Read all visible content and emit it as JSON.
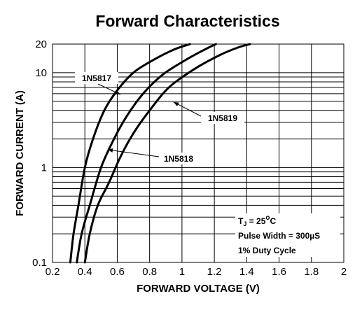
{
  "chart_data": {
    "type": "line",
    "title": "Forward Characteristics",
    "xlabel": "FORWARD VOLTAGE (V)",
    "ylabel": "FORWARD CURRENT (A)",
    "xlim": [
      0.2,
      2.0
    ],
    "ylim": [
      0.1,
      20
    ],
    "yscale": "log",
    "grid": true,
    "x_ticks": [
      0.2,
      0.4,
      0.6,
      0.8,
      1.0,
      1.2,
      1.4,
      1.6,
      1.8,
      2.0
    ],
    "x_tick_labels": [
      "0.2",
      "0.4",
      "0.6",
      "0.8",
      "1",
      "1.2",
      "1.4",
      "1.6",
      "1.8",
      "2"
    ],
    "y_ticks": [
      0.1,
      1,
      10,
      20
    ],
    "y_tick_labels": [
      "0.1",
      "1",
      "10",
      "20"
    ],
    "series": [
      {
        "name": "1N5817",
        "x": [
          0.31,
          0.33,
          0.36,
          0.4,
          0.45,
          0.52,
          0.6,
          0.7,
          0.82,
          0.95,
          1.05
        ],
        "y": [
          0.1,
          0.2,
          0.4,
          1.0,
          2.0,
          4.0,
          6.5,
          10.0,
          13.5,
          17.5,
          20
        ]
      },
      {
        "name": "1N5818",
        "x": [
          0.35,
          0.38,
          0.43,
          0.5,
          0.58,
          0.66,
          0.76,
          0.88,
          1.02,
          1.14,
          1.21
        ],
        "y": [
          0.1,
          0.2,
          0.4,
          1.0,
          2.0,
          3.5,
          6.0,
          9.5,
          13.5,
          17.5,
          20
        ]
      },
      {
        "name": "1N5819",
        "x": [
          0.4,
          0.43,
          0.48,
          0.55,
          0.62,
          0.7,
          0.8,
          0.92,
          1.08,
          1.24,
          1.35,
          1.42
        ],
        "y": [
          0.1,
          0.2,
          0.4,
          0.7,
          1.3,
          2.3,
          4.0,
          7.0,
          11.0,
          15.5,
          18.5,
          20
        ]
      }
    ],
    "conditions": {
      "tj_prefix": "T",
      "tj_sub": "J",
      "tj_value": " = 25",
      "tj_sup": "o",
      "tj_unit": "C",
      "pulse_width": "Pulse Width = 300µS",
      "duty_cycle": "1% Duty Cycle"
    }
  }
}
